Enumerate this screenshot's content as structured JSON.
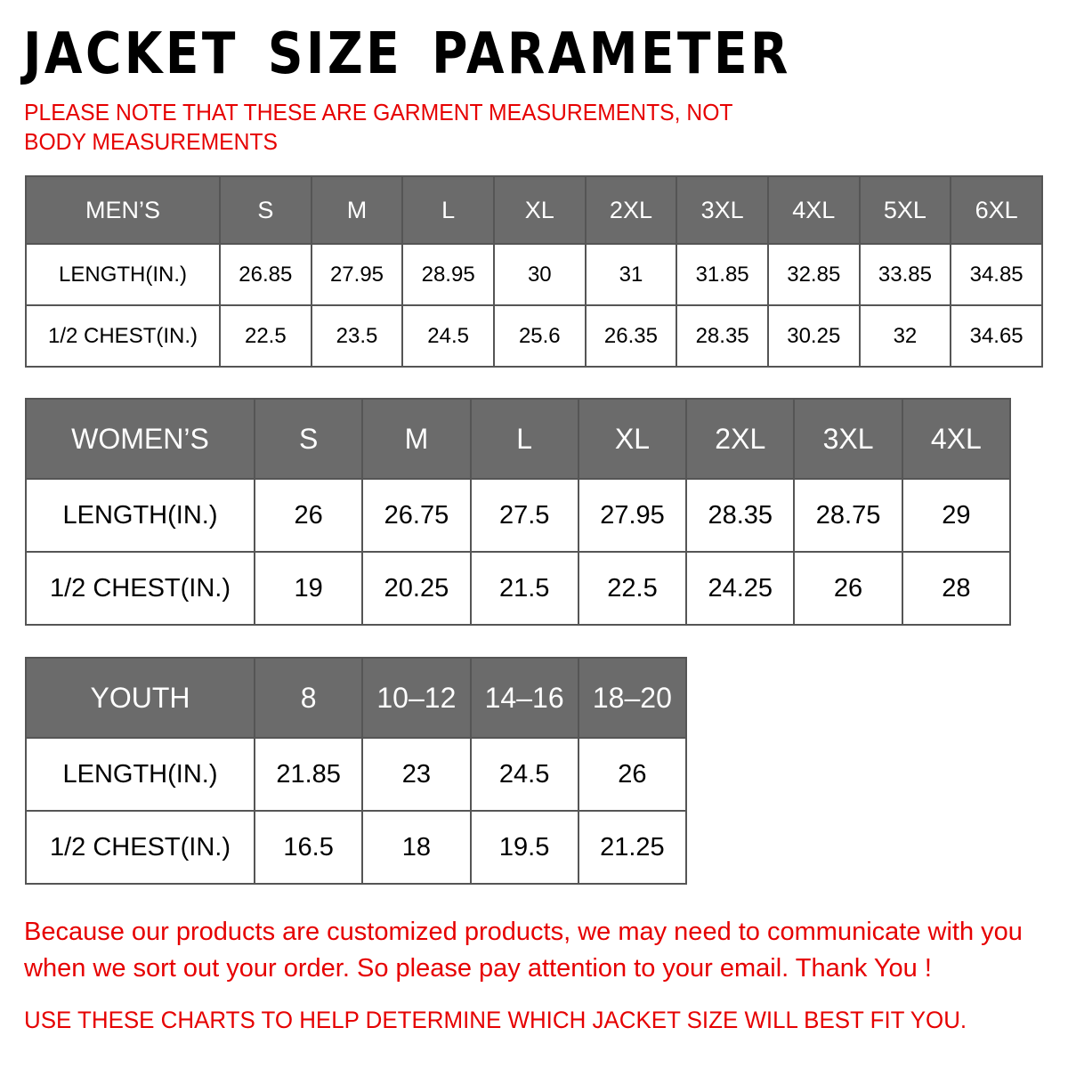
{
  "title": "JACKET SIZE PARAMETER",
  "note": "PLEASE NOTE THAT THESE ARE GARMENT MEASUREMENTS, NOT BODY MEASUREMENTS",
  "colors": {
    "header_bg": "#6b6b6b",
    "note_red": "#e60000"
  },
  "mens": {
    "headers": [
      "MEN’S",
      "S",
      "M",
      "L",
      "XL",
      "2XL",
      "3XL",
      "4XL",
      "5XL",
      "6XL"
    ],
    "rows": [
      [
        "LENGTH(IN.)",
        "26.85",
        "27.95",
        "28.95",
        "30",
        "31",
        "31.85",
        "32.85",
        "33.85",
        "34.85"
      ],
      [
        "1/2 CHEST(IN.)",
        "22.5",
        "23.5",
        "24.5",
        "25.6",
        "26.35",
        "28.35",
        "30.25",
        "32",
        "34.65"
      ]
    ]
  },
  "womens": {
    "headers": [
      "WOMEN’S",
      "S",
      "M",
      "L",
      "XL",
      "2XL",
      "3XL",
      "4XL"
    ],
    "rows": [
      [
        "LENGTH(IN.)",
        "26",
        "26.75",
        "27.5",
        "27.95",
        "28.35",
        "28.75",
        "29"
      ],
      [
        "1/2 CHEST(IN.)",
        "19",
        "20.25",
        "21.5",
        "22.5",
        "24.25",
        "26",
        "28"
      ]
    ]
  },
  "youth": {
    "headers": [
      "YOUTH",
      "8",
      "10–12",
      "14–16",
      "18–20"
    ],
    "rows": [
      [
        "LENGTH(IN.)",
        "21.85",
        "23",
        "24.5",
        "26"
      ],
      [
        "1/2 CHEST(IN.)",
        "16.5",
        "18",
        "19.5",
        "21.25"
      ]
    ]
  },
  "footer": "Because our products are customized products, we may need to communicate with you when we sort out your order. So please pay attention to your email. Thank You !",
  "footer2": "USE THESE CHARTS TO HELP DETERMINE WHICH JACKET SIZE WILL BEST FIT YOU."
}
